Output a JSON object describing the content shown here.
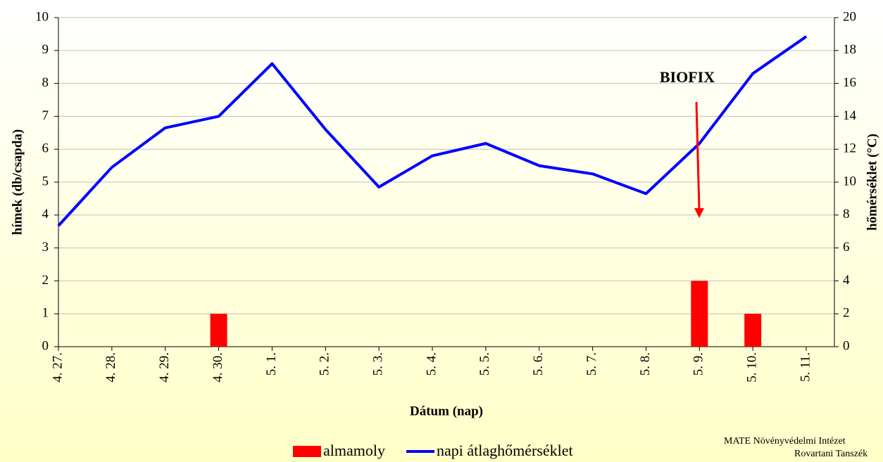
{
  "chart_data": {
    "type": "bar",
    "categories": [
      "4. 27.",
      "4. 28.",
      "4. 29.",
      "4. 30.",
      "5. 1.",
      "5. 2.",
      "5. 3.",
      "5. 4.",
      "5. 5.",
      "5. 6.",
      "5. 7.",
      "5. 8.",
      "5. 9.",
      "5. 10.",
      "5. 11."
    ],
    "series": [
      {
        "name": "almamoly",
        "type": "bar",
        "color": "#ff0000",
        "values": [
          0,
          0,
          0,
          1,
          0,
          0,
          0,
          0,
          0,
          0,
          0,
          0,
          2,
          1,
          0
        ]
      },
      {
        "name": "napi átlaghőmérséklet",
        "type": "line",
        "axis": "y2",
        "color": "#0000ff",
        "values": [
          7.35,
          10.9,
          13.3,
          14.0,
          17.2,
          13.2,
          9.7,
          11.6,
          12.35,
          11.0,
          10.5,
          9.3,
          12.35,
          16.6,
          18.85
        ]
      }
    ],
    "ylim": [
      0,
      10
    ],
    "yticks": [
      0,
      1,
      2,
      3,
      4,
      5,
      6,
      7,
      8,
      9,
      10
    ],
    "y2lim": [
      0,
      20
    ],
    "y2ticks": [
      0,
      2,
      4,
      6,
      8,
      10,
      12,
      14,
      16,
      18,
      20
    ],
    "y_label": "hímek (db/csapda)",
    "y2_label": "hőmérséklet (°C)",
    "x_label": "Dátum (nap)",
    "grid": true,
    "legend": "bottom",
    "annotation": {
      "text": "BIOFIX",
      "color": "#ff0000"
    },
    "footer": [
      "MATE Növényvédelmi Intézet",
      "Rovartani Tanszék"
    ]
  }
}
